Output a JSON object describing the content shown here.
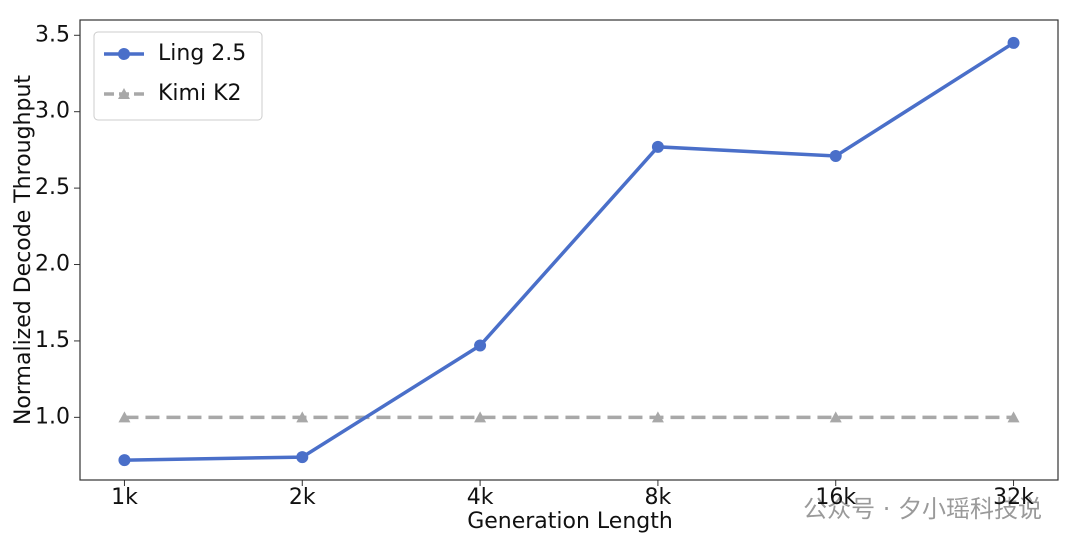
{
  "chart_data": {
    "type": "line",
    "x_label": "Generation Length",
    "y_label": "Normalized Decode Throughput",
    "categories": [
      "1k",
      "2k",
      "4k",
      "8k",
      "16k",
      "32k"
    ],
    "series": [
      {
        "name": "Ling 2.5",
        "color": "#4a6fc9",
        "marker": "circle",
        "dash": false,
        "values": [
          0.72,
          0.74,
          1.47,
          2.77,
          2.71,
          3.45
        ]
      },
      {
        "name": "Kimi K2",
        "color": "#a8a8a8",
        "marker": "triangle",
        "dash": true,
        "values": [
          1.0,
          1.0,
          1.0,
          1.0,
          1.0,
          1.0
        ]
      }
    ],
    "ylim": [
      0.59,
      3.6
    ],
    "yticks": [
      {
        "value": 1,
        "label": "1.0"
      },
      1.5,
      {
        "value": 2,
        "label": "2.0"
      },
      2.5,
      {
        "value": 3,
        "label": "3.0"
      },
      3.5
    ],
    "legend": "upper left",
    "grid": false,
    "watermark": "公众号 · 夕小瑶科技说"
  }
}
